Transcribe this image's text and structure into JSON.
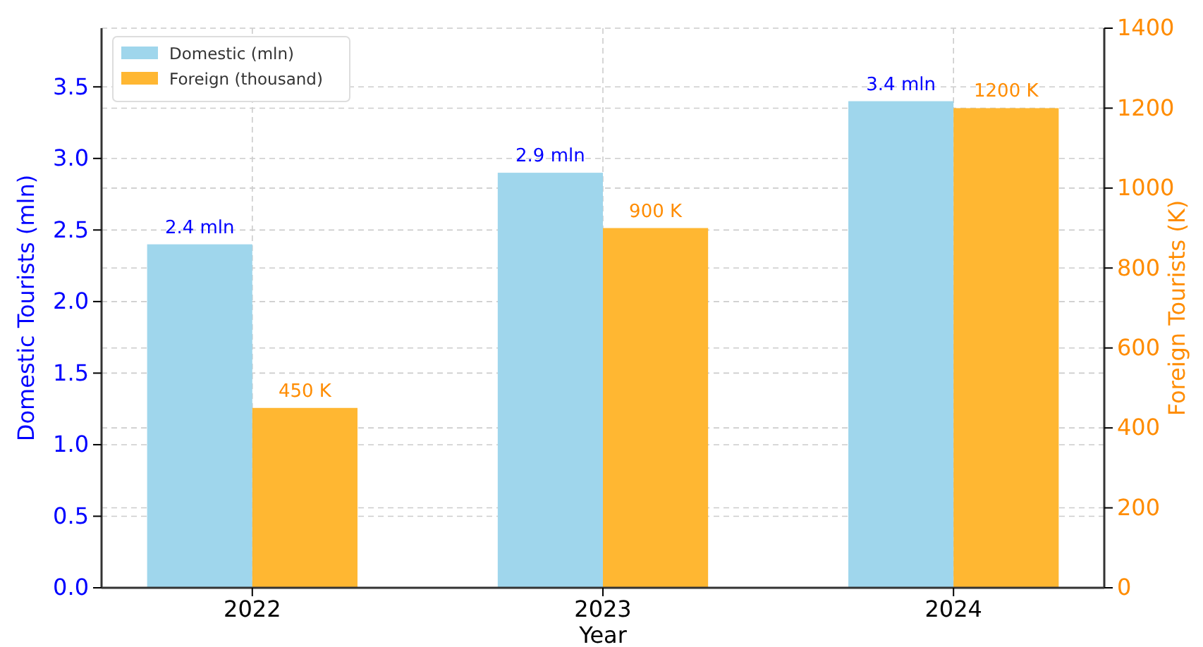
{
  "chart_data": {
    "type": "bar",
    "xlabel": "Year",
    "ylabel": "Domestic Tourists (mln)",
    "y2label": "Foreign Tourists (K)",
    "categories": [
      "2022",
      "2023",
      "2024"
    ],
    "series": [
      {
        "name": "Domestic (mln)",
        "color": "#9fd6ec",
        "values": [
          2.4,
          2.9,
          3.4
        ],
        "value_labels": [
          "2.4 mln",
          "2.9 mln",
          "3.4 mln"
        ]
      },
      {
        "name": "Foreign (thousand)",
        "color": "#ffb732",
        "values": [
          450,
          900,
          1200
        ],
        "value_labels": [
          "450 K",
          "900 K",
          "1200 K"
        ],
        "axis": "y2"
      }
    ],
    "ylim": [
      0,
      3.91
    ],
    "yticks": [
      {
        "value": 0,
        "label": "0.0"
      },
      {
        "value": 0.5,
        "label": "0.5"
      },
      {
        "value": 1,
        "label": "1.0"
      },
      {
        "value": 1.5,
        "label": "1.5"
      },
      {
        "value": 2,
        "label": "2.0"
      },
      {
        "value": 2.5,
        "label": "2.5"
      },
      {
        "value": 3,
        "label": "3.0"
      },
      {
        "value": 3.5,
        "label": "3.5"
      }
    ],
    "y2lim": [
      0,
      1400
    ],
    "y2ticks": [
      0,
      200,
      400,
      600,
      800,
      1000,
      1200,
      1400
    ],
    "grid": true,
    "legend": "top left"
  }
}
